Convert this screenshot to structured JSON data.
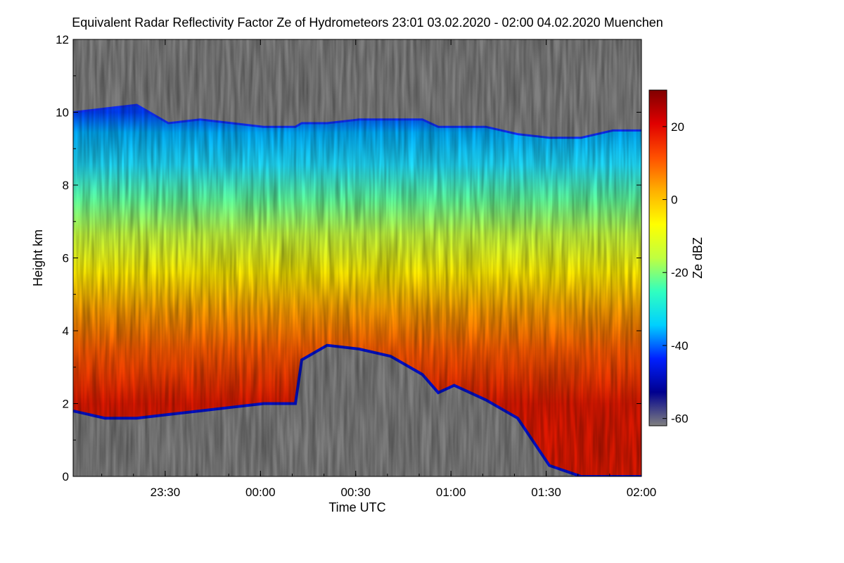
{
  "title": "Equivalent Radar Reflectivity Factor Ze of Hydrometeors   23:01 03.02.2020 - 02:00 04.02.2020 Muenchen",
  "chart_data": {
    "type": "heatmap",
    "xlabel": "Time UTC",
    "ylabel": "Height km",
    "x_start": "23:01",
    "x_end": "02:00",
    "x_ticks": [
      "23:30",
      "00:00",
      "00:30",
      "01:00",
      "01:30",
      "02:00"
    ],
    "y_ticks": [
      "0",
      "2",
      "4",
      "6",
      "8",
      "10",
      "12"
    ],
    "ylim": [
      0,
      12
    ],
    "colorbar": {
      "label": "Ze dBZ",
      "range": [
        -62,
        30
      ],
      "ticks": [
        "-60",
        "-40",
        "-20",
        "0",
        "20"
      ],
      "tick_values": [
        -60,
        -40,
        -20,
        0,
        20
      ]
    },
    "background_color": "#808080",
    "colormap": [
      "#808080",
      "#00008f",
      "#0020ff",
      "#00d0ff",
      "#30ffc0",
      "#c0ff40",
      "#ffff00",
      "#ffb000",
      "#ff5000",
      "#e00000",
      "#800000"
    ],
    "time_minutes": [
      0,
      10,
      20,
      30,
      40,
      50,
      60,
      70,
      72,
      80,
      90,
      100,
      110,
      115,
      120,
      130,
      140,
      150,
      160,
      170,
      179
    ],
    "echo_top_km": [
      10.0,
      10.1,
      10.2,
      9.7,
      9.8,
      9.7,
      9.6,
      9.6,
      9.7,
      9.7,
      9.8,
      9.8,
      9.8,
      9.6,
      9.6,
      9.6,
      9.4,
      9.3,
      9.3,
      9.5,
      9.5
    ],
    "echo_base_km": [
      1.8,
      1.6,
      1.6,
      1.7,
      1.8,
      1.9,
      2.0,
      2.0,
      3.2,
      3.6,
      3.5,
      3.3,
      2.8,
      2.3,
      2.5,
      2.1,
      1.6,
      0.3,
      0.0,
      0.0,
      0.0
    ]
  }
}
